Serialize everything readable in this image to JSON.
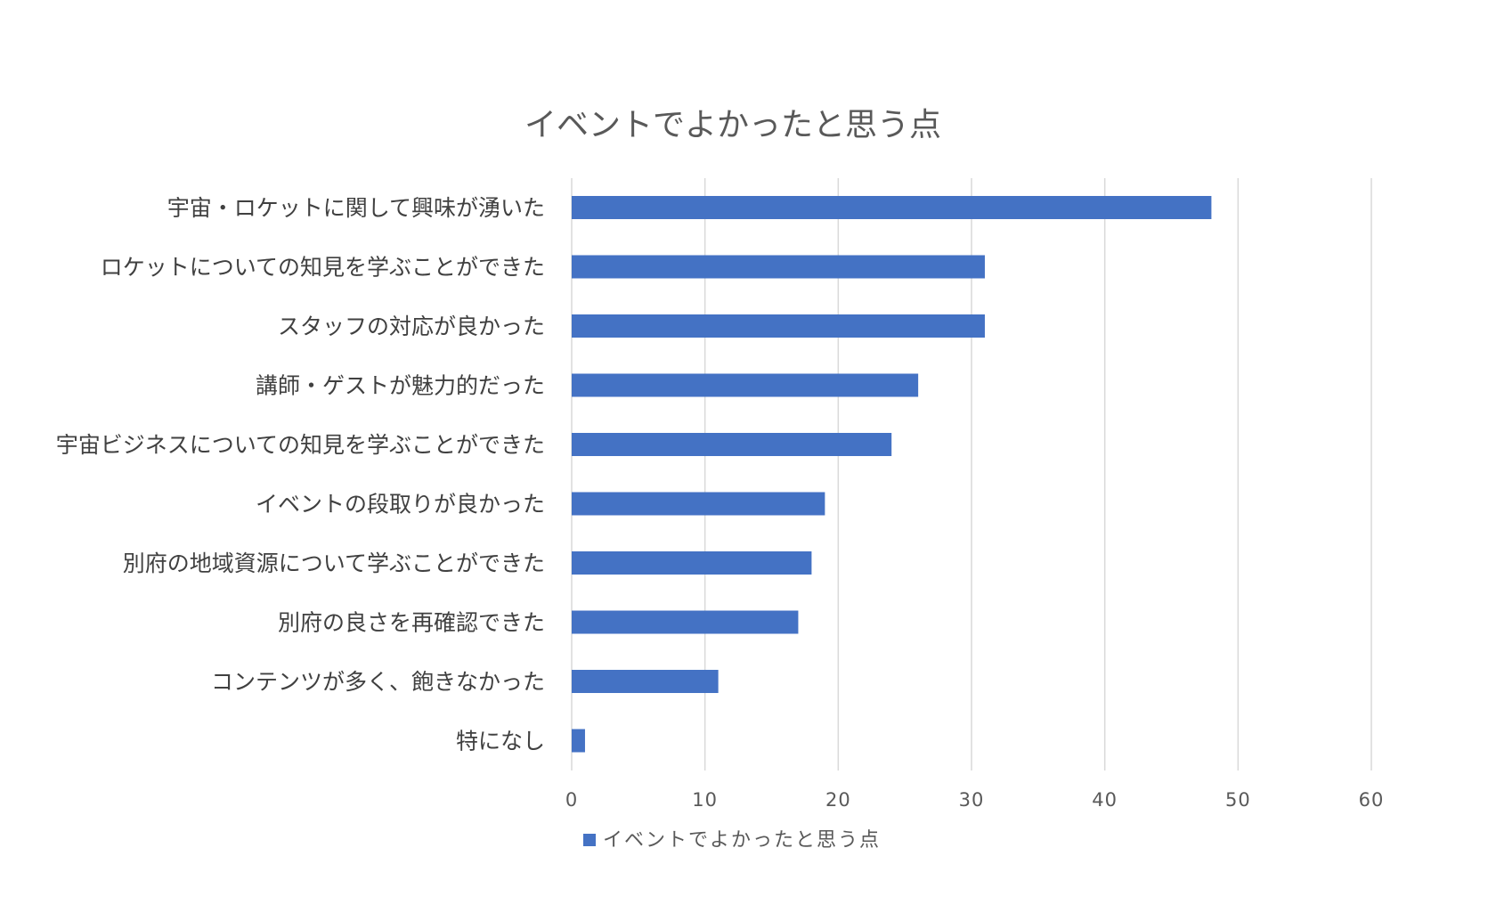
{
  "chart_data": {
    "type": "bar",
    "orientation": "horizontal",
    "title": "イベントでよかったと思う点",
    "categories": [
      "宇宙・ロケットに関して興味が湧いた",
      "ロケットについての知見を学ぶことができた",
      "スタッフの対応が良かった",
      "講師・ゲストが魅力的だった",
      "宇宙ビジネスについての知見を学ぶことができた",
      "イベントの段取りが良かった",
      "別府の地域資源について学ぶことができた",
      "別府の良さを再確認できた",
      "コンテンツが多く、飽きなかった",
      "特になし"
    ],
    "series": [
      {
        "name": "イベントでよかったと思う点",
        "values": [
          48,
          31,
          31,
          26,
          24,
          19,
          18,
          17,
          11,
          1
        ],
        "color": "#4472C4"
      }
    ],
    "xlim": [
      0,
      60
    ],
    "xticks": [
      "0",
      "10",
      "20",
      "30",
      "40",
      "50",
      "60"
    ],
    "xlabel": "",
    "ylabel": "",
    "grid": "vertical",
    "grid_color": "#D9D9D9",
    "legend_position": "bottom"
  }
}
